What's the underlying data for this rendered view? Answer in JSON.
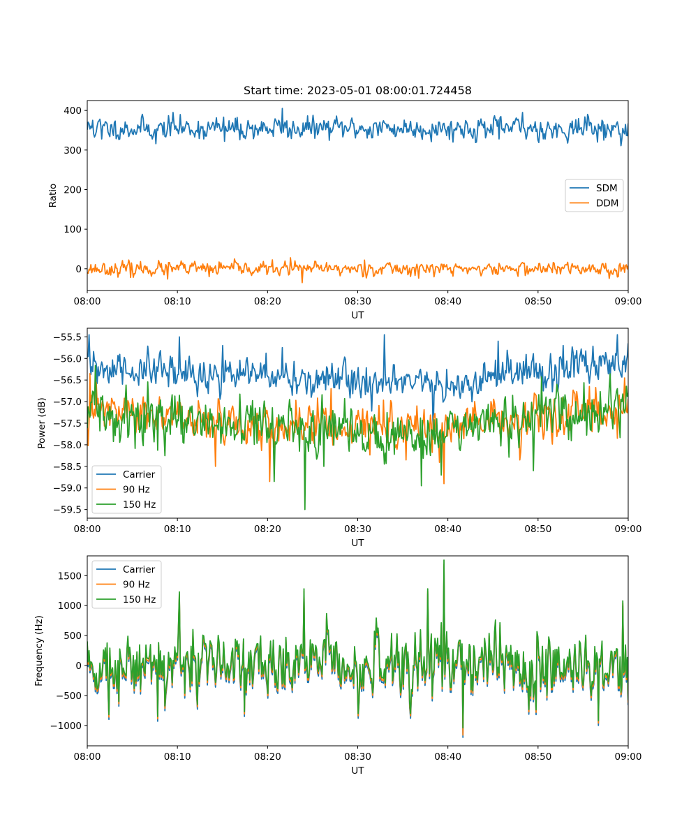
{
  "title": "Start time: 2023-05-01 08:00:01.724458",
  "chart_data": [
    {
      "type": "line",
      "title": "Start time: 2023-05-01 08:00:01.724458",
      "xlabel": "UT",
      "ylabel": "Ratio",
      "xlim": [
        "08:00",
        "09:00"
      ],
      "ylim": [
        -55,
        425
      ],
      "xticks": [
        "08:00",
        "08:10",
        "08:20",
        "08:30",
        "08:40",
        "08:50",
        "09:00"
      ],
      "yticks": [
        "0",
        "100",
        "200",
        "300",
        "400"
      ],
      "legend": "center-right",
      "grid": false,
      "samples": 600,
      "series": [
        {
          "name": "SDM",
          "color": "#1f77b4",
          "mean": 355,
          "noise": 13,
          "seed": 11,
          "peaks": [
            [
              0.01,
              375
            ],
            [
              0.026,
              328
            ],
            [
              0.127,
              316
            ],
            [
              0.159,
              395
            ],
            [
              0.215,
              328
            ],
            [
              0.253,
              322
            ],
            [
              0.282,
              326
            ],
            [
              0.361,
              405
            ],
            [
              0.378,
              329
            ],
            [
              0.527,
              331
            ],
            [
              0.761,
              328
            ],
            [
              0.804,
              395
            ],
            [
              0.868,
              332
            ],
            [
              0.925,
              390
            ],
            [
              0.955,
              325
            ],
            [
              0.996,
              337
            ]
          ]
        },
        {
          "name": "DDM",
          "color": "#ff7f0e",
          "mean": 0,
          "noise": 8,
          "seed": 23,
          "peaks": [
            [
              0.08,
              -22
            ],
            [
              0.148,
              -26
            ],
            [
              0.226,
              -20
            ],
            [
              0.375,
              28
            ],
            [
              0.398,
              -35
            ],
            [
              0.513,
              22
            ],
            [
              0.606,
              -17
            ],
            [
              0.75,
              -14
            ],
            [
              0.862,
              16
            ],
            [
              0.982,
              -20
            ]
          ]
        }
      ]
    },
    {
      "type": "line",
      "title": "",
      "xlabel": "UT",
      "ylabel": "Power (dB)",
      "xlim": [
        "08:00",
        "09:00"
      ],
      "ylim": [
        -59.7,
        -55.3
      ],
      "xticks": [
        "08:00",
        "08:10",
        "08:20",
        "08:30",
        "08:40",
        "08:50",
        "09:00"
      ],
      "yticks": [
        "−55.5",
        "−56.0",
        "−56.5",
        "−57.0",
        "−57.5",
        "−58.0",
        "−58.5",
        "−59.0",
        "−59.5"
      ],
      "legend": "lower-left",
      "grid": false,
      "samples": 600,
      "series": [
        {
          "name": "Carrier",
          "color": "#1f77b4",
          "mean": -56.4,
          "noise": 0.2,
          "seed": 31,
          "trend": [
            [
              0,
              -56.25
            ],
            [
              0.3,
              -56.4
            ],
            [
              0.65,
              -56.65
            ],
            [
              1,
              -56.05
            ]
          ],
          "peaks": [
            [
              0.003,
              -55.45
            ],
            [
              0.17,
              -55.5
            ],
            [
              0.25,
              -55.7
            ],
            [
              0.36,
              -55.75
            ],
            [
              0.55,
              -55.45
            ],
            [
              0.64,
              -57.8
            ],
            [
              0.76,
              -55.6
            ],
            [
              0.88,
              -55.7
            ],
            [
              0.98,
              -55.45
            ]
          ]
        },
        {
          "name": "90 Hz",
          "color": "#ff7f0e",
          "mean": -57.5,
          "noise": 0.22,
          "seed": 47,
          "trend": [
            [
              0,
              -57.2
            ],
            [
              0.3,
              -57.55
            ],
            [
              0.65,
              -57.6
            ],
            [
              1,
              -57.25
            ]
          ],
          "peaks": [
            [
              0.005,
              -56.35
            ],
            [
              0.237,
              -58.5
            ],
            [
              0.338,
              -58.85
            ],
            [
              0.45,
              -56.7
            ],
            [
              0.59,
              -58.35
            ],
            [
              0.66,
              -58.9
            ],
            [
              0.8,
              -58.35
            ],
            [
              0.928,
              -56.65
            ],
            [
              0.993,
              -56.45
            ]
          ]
        },
        {
          "name": "150 Hz",
          "color": "#2ca02c",
          "mean": -57.45,
          "noise": 0.28,
          "seed": 59,
          "trend": [
            [
              0,
              -57.3
            ],
            [
              0.3,
              -57.6
            ],
            [
              0.65,
              -57.75
            ],
            [
              1,
              -57.1
            ]
          ],
          "peaks": [
            [
              0.025,
              -56.9
            ],
            [
              0.345,
              -58.85
            ],
            [
              0.402,
              -59.5
            ],
            [
              0.437,
              -58.5
            ],
            [
              0.617,
              -58.95
            ],
            [
              0.655,
              -58.7
            ],
            [
              0.825,
              -58.6
            ],
            [
              0.98,
              -56.7
            ]
          ]
        }
      ]
    },
    {
      "type": "line",
      "title": "",
      "xlabel": "UT",
      "ylabel": "Frequency (Hz)",
      "xlim": [
        "08:00",
        "09:00"
      ],
      "ylim": [
        -1340,
        1830
      ],
      "xticks": [
        "08:00",
        "08:10",
        "08:20",
        "08:30",
        "08:40",
        "08:50",
        "09:00"
      ],
      "yticks": [
        "−1000",
        "−500",
        "0",
        "500",
        "1000",
        "1500"
      ],
      "legend": "upper-left",
      "grid": false,
      "samples": 600,
      "series": [
        {
          "name": "Carrier",
          "color": "#1f77b4",
          "mean": -20,
          "noise": 260,
          "seed": 73,
          "offset": 0,
          "peaks": [
            [
              0.04,
              -900
            ],
            [
              0.13,
              -930
            ],
            [
              0.17,
              1150
            ],
            [
              0.29,
              -850
            ],
            [
              0.4,
              1200
            ],
            [
              0.5,
              -880
            ],
            [
              0.63,
              1200
            ],
            [
              0.66,
              1650
            ],
            [
              0.694,
              -1200
            ],
            [
              0.83,
              -820
            ],
            [
              0.945,
              -1000
            ],
            [
              0.99,
              1000
            ]
          ]
        },
        {
          "name": "90 Hz",
          "color": "#ff7f0e",
          "mean": -20,
          "noise": 260,
          "seed": 73,
          "offset": 40,
          "peaks": [
            [
              0.04,
              -900
            ],
            [
              0.13,
              -930
            ],
            [
              0.17,
              1150
            ],
            [
              0.29,
              -850
            ],
            [
              0.4,
              1200
            ],
            [
              0.5,
              -880
            ],
            [
              0.63,
              1200
            ],
            [
              0.66,
              1650
            ],
            [
              0.694,
              -1200
            ],
            [
              0.83,
              -820
            ],
            [
              0.945,
              -1000
            ],
            [
              0.99,
              1000
            ]
          ]
        },
        {
          "name": "150 Hz",
          "color": "#2ca02c",
          "mean": -20,
          "noise": 260,
          "seed": 73,
          "offset": 80,
          "peaks": [
            [
              0.04,
              -900
            ],
            [
              0.13,
              -930
            ],
            [
              0.17,
              1150
            ],
            [
              0.29,
              -850
            ],
            [
              0.4,
              1200
            ],
            [
              0.5,
              -880
            ],
            [
              0.63,
              1200
            ],
            [
              0.66,
              1680
            ],
            [
              0.694,
              -1120
            ],
            [
              0.83,
              -820
            ],
            [
              0.945,
              -1000
            ],
            [
              0.99,
              1000
            ]
          ]
        }
      ]
    }
  ]
}
